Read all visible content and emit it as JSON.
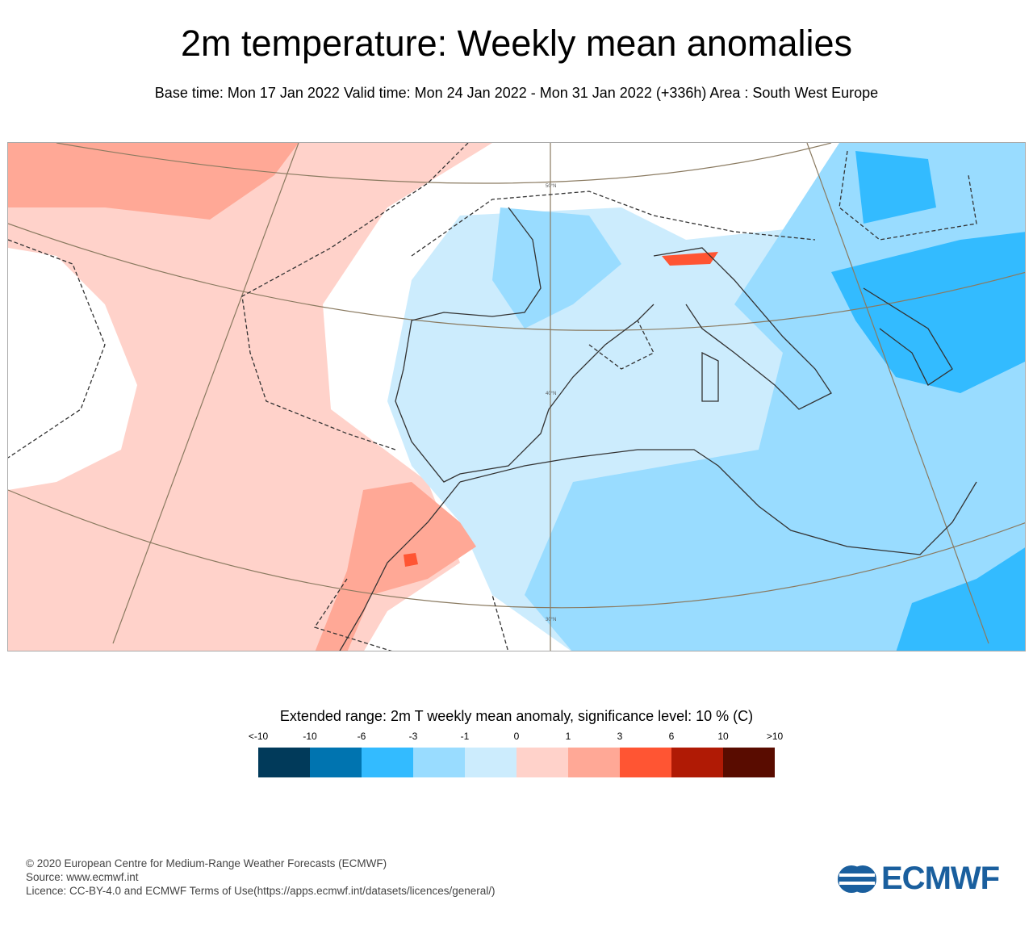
{
  "title": "2m temperature: Weekly mean anomalies",
  "subtitle": "Base time: Mon 17 Jan 2022 Valid time: Mon 24 Jan 2022 - Mon 31 Jan 2022 (+336h) Area : South West Europe",
  "map": {
    "latitude_labels": [
      "50°N",
      "40°N",
      "30°N"
    ],
    "region": "South West Europe"
  },
  "legend": {
    "title": "Extended range: 2m T weekly mean anomaly, significance level: 10 % (C)",
    "ticks": [
      "<-10",
      "-10",
      "-6",
      "-3",
      "-1",
      "0",
      "1",
      "3",
      "6",
      "10",
      ">10"
    ],
    "colors": [
      "#013a5a",
      "#0074b0",
      "#33bbff",
      "#99dcff",
      "#ccecfd",
      "#ffd2ca",
      "#ffa896",
      "#ff5533",
      "#b01a05",
      "#590c00"
    ]
  },
  "footer": {
    "copyright": "© 2020 European Centre for Medium-Range Weather Forecasts (ECMWF)",
    "source": "Source: www.ecmwf.int",
    "licence": "Licence: CC-BY-4.0 and ECMWF Terms of Use(https://apps.ecmwf.int/datasets/licences/general/)"
  },
  "logo": {
    "text": "ECMWF"
  }
}
